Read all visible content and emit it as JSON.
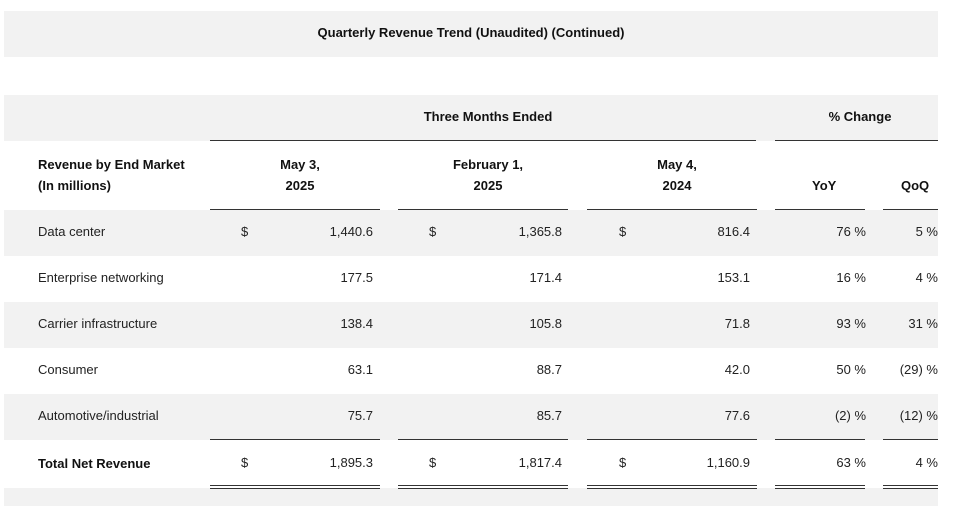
{
  "title": "Quarterly Revenue Trend (Unaudited) (Continued)",
  "header": {
    "group_periods": "Three Months Ended",
    "group_change": "% Change",
    "row_label_line1": "Revenue by End Market",
    "row_label_line2": "(In millions)",
    "periods": [
      {
        "line1": "May 3,",
        "line2": "2025"
      },
      {
        "line1": "February 1,",
        "line2": "2025"
      },
      {
        "line1": "May 4,",
        "line2": "2024"
      }
    ],
    "change_cols": [
      "YoY",
      "QoQ"
    ]
  },
  "currency_symbol": "$",
  "rows": [
    {
      "label": "Data center",
      "values": [
        "1,440.6",
        "1,365.8",
        "816.4"
      ],
      "yoy": "76 %",
      "qoq": "5 %"
    },
    {
      "label": "Enterprise networking",
      "values": [
        "177.5",
        "171.4",
        "153.1"
      ],
      "yoy": "16 %",
      "qoq": "4 %"
    },
    {
      "label": "Carrier infrastructure",
      "values": [
        "138.4",
        "105.8",
        "71.8"
      ],
      "yoy": "93 %",
      "qoq": "31 %"
    },
    {
      "label": "Consumer",
      "values": [
        "63.1",
        "88.7",
        "42.0"
      ],
      "yoy": "50 %",
      "qoq": "(29) %"
    },
    {
      "label": "Automotive/industrial",
      "values": [
        "75.7",
        "85.7",
        "77.6"
      ],
      "yoy": "(2) %",
      "qoq": "(12) %"
    }
  ],
  "total": {
    "label": "Total Net Revenue",
    "values": [
      "1,895.3",
      "1,817.4",
      "1,160.9"
    ],
    "yoy": "63 %",
    "qoq": "4 %"
  }
}
